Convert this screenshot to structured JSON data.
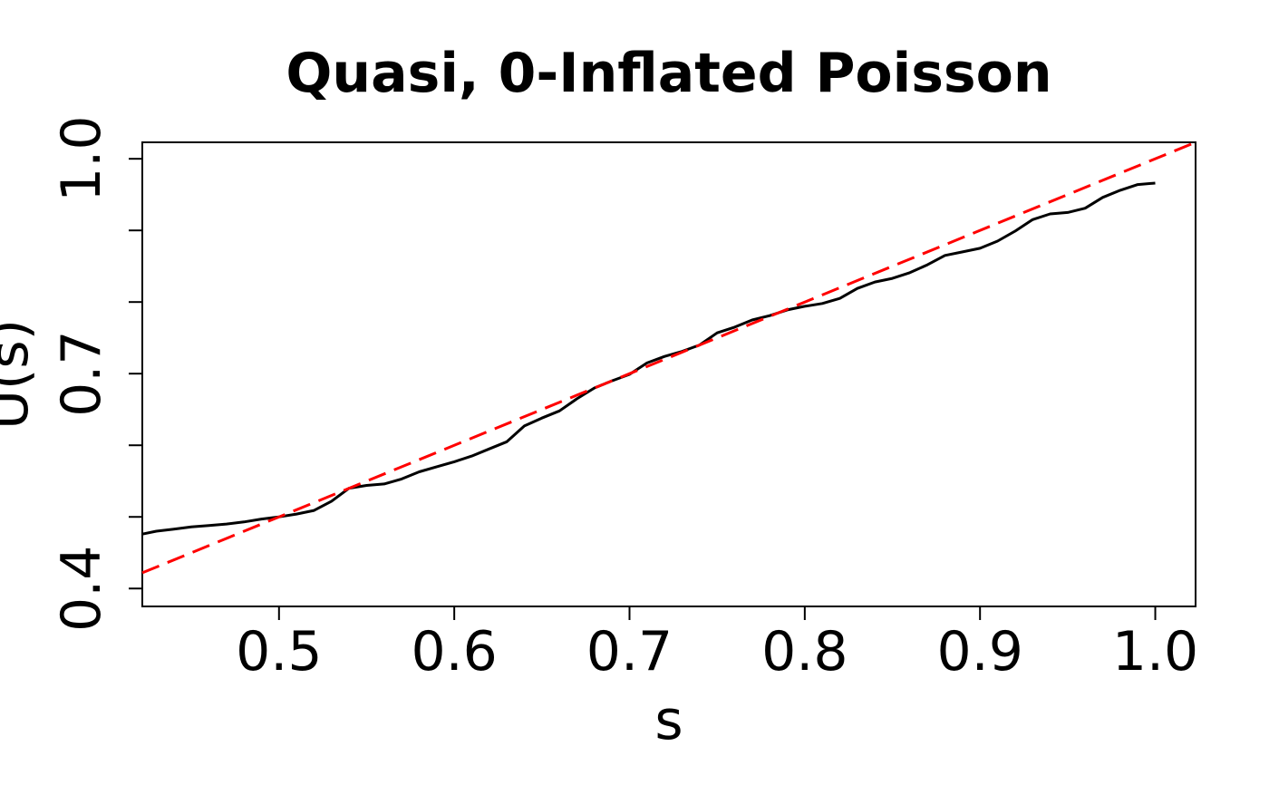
{
  "chart_data": {
    "type": "line",
    "title": "Quasi, 0-Inflated Poisson",
    "xlabel": "s",
    "ylabel": "U(s)",
    "xlim": [
      0.422,
      1.023
    ],
    "ylim": [
      0.375,
      1.023
    ],
    "xticks": [
      "0.5",
      "0.6",
      "0.7",
      "0.8",
      "0.9",
      "1.0"
    ],
    "xtick_values": [
      0.5,
      0.6,
      0.7,
      0.8,
      0.9,
      1.0
    ],
    "yticks": [
      "0.4",
      "0.7",
      "1.0"
    ],
    "ytick_values": [
      0.4,
      0.7,
      1.0
    ],
    "yminor_values": [
      0.5,
      0.6,
      0.8,
      0.9
    ],
    "grid": false,
    "series": [
      {
        "style": "solid",
        "color": "#000000",
        "x": [
          0.422,
          0.43,
          0.44,
          0.45,
          0.46,
          0.47,
          0.48,
          0.49,
          0.5,
          0.51,
          0.52,
          0.53,
          0.54,
          0.55,
          0.56,
          0.57,
          0.58,
          0.59,
          0.6,
          0.61,
          0.62,
          0.63,
          0.64,
          0.65,
          0.66,
          0.67,
          0.68,
          0.69,
          0.7,
          0.71,
          0.72,
          0.73,
          0.74,
          0.75,
          0.76,
          0.77,
          0.78,
          0.79,
          0.8,
          0.81,
          0.82,
          0.83,
          0.84,
          0.85,
          0.86,
          0.87,
          0.88,
          0.89,
          0.9,
          0.91,
          0.92,
          0.93,
          0.94,
          0.95,
          0.96,
          0.97,
          0.98,
          0.99,
          1.0
        ],
        "y": [
          0.476,
          0.48,
          0.483,
          0.486,
          0.488,
          0.49,
          0.493,
          0.497,
          0.5,
          0.504,
          0.509,
          0.522,
          0.54,
          0.544,
          0.546,
          0.553,
          0.563,
          0.57,
          0.577,
          0.585,
          0.595,
          0.605,
          0.627,
          0.638,
          0.648,
          0.665,
          0.68,
          0.69,
          0.699,
          0.715,
          0.724,
          0.731,
          0.74,
          0.757,
          0.765,
          0.775,
          0.781,
          0.789,
          0.794,
          0.798,
          0.805,
          0.819,
          0.828,
          0.833,
          0.841,
          0.852,
          0.865,
          0.87,
          0.875,
          0.885,
          0.899,
          0.915,
          0.923,
          0.925,
          0.931,
          0.946,
          0.956,
          0.964,
          0.966
        ]
      },
      {
        "style": "dashed",
        "color": "#ff0000",
        "x": [
          0.422,
          1.023
        ],
        "y": [
          0.422,
          1.023
        ]
      }
    ]
  }
}
